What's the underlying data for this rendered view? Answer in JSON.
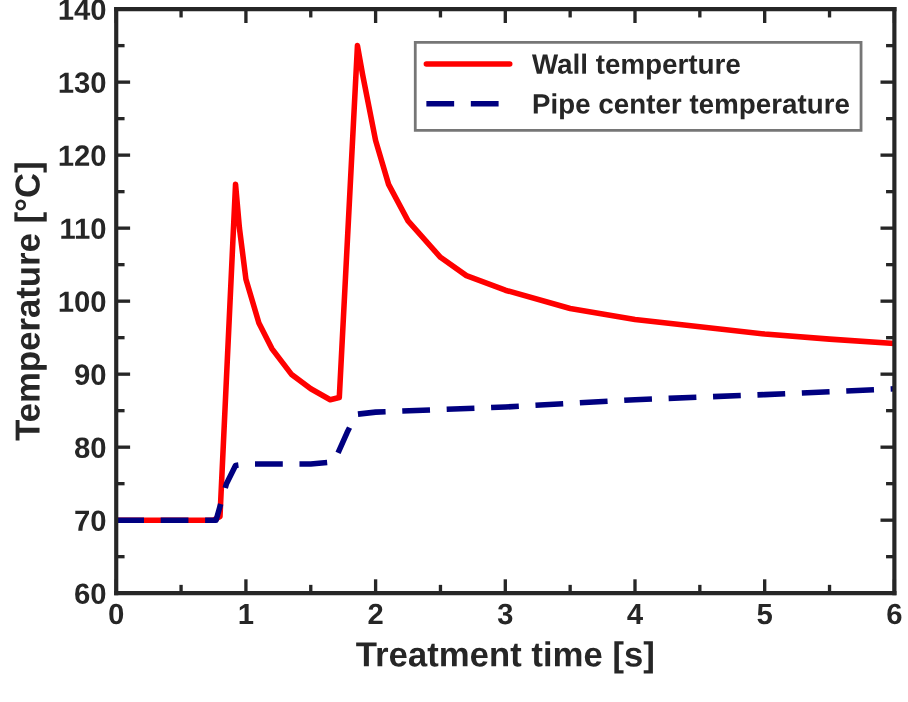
{
  "chart_data": {
    "type": "line",
    "xlabel": "Treatment time [s]",
    "ylabel": "Temperature [°C]",
    "xlim": [
      0,
      6
    ],
    "xticks": [
      0,
      1,
      2,
      3,
      4,
      5,
      6
    ],
    "ylim": [
      60,
      140
    ],
    "yticks": [
      60,
      70,
      80,
      90,
      100,
      110,
      120,
      130,
      140
    ],
    "legend": "top right",
    "grid": false,
    "series": [
      {
        "name": "Wall temperture",
        "color": "#ff0000",
        "line_style": "solid",
        "x": [
          0,
          0.75,
          0.8,
          0.92,
          0.95,
          1.0,
          1.1,
          1.2,
          1.35,
          1.5,
          1.65,
          1.72,
          1.86,
          1.9,
          2.0,
          2.1,
          2.25,
          2.5,
          2.7,
          3.0,
          3.5,
          4.0,
          4.5,
          5.0,
          5.5,
          6.0
        ],
        "values": [
          70,
          70,
          70.5,
          116,
          110,
          103,
          97,
          93.5,
          90,
          88,
          86.5,
          86.8,
          135,
          131,
          122,
          116,
          111,
          106,
          103.5,
          101.5,
          99,
          97.5,
          96.5,
          95.5,
          94.8,
          94.2
        ]
      },
      {
        "name": "Pipe center temperature",
        "color": "#000080",
        "line_style": "dashed",
        "x": [
          0,
          0.77,
          0.85,
          0.92,
          1.0,
          1.5,
          1.68,
          1.78,
          1.85,
          2.0,
          3.0,
          4.0,
          5.0,
          6.0
        ],
        "values": [
          70,
          70,
          75,
          77.5,
          77.7,
          77.7,
          78,
          82,
          84.5,
          84.8,
          85.5,
          86.5,
          87.2,
          88
        ]
      }
    ]
  }
}
